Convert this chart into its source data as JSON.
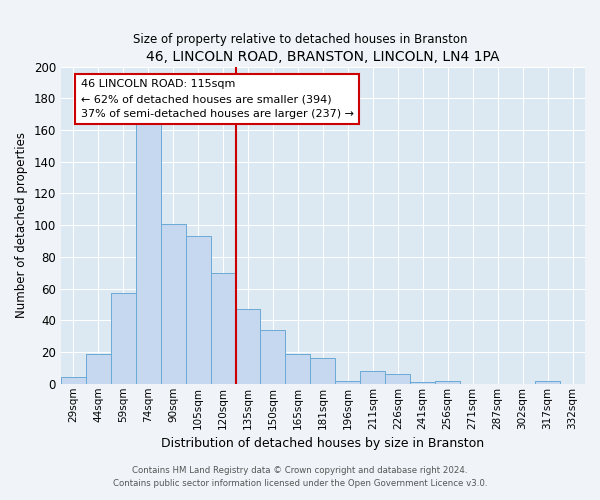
{
  "title": "46, LINCOLN ROAD, BRANSTON, LINCOLN, LN4 1PA",
  "subtitle": "Size of property relative to detached houses in Branston",
  "xlabel": "Distribution of detached houses by size in Branston",
  "ylabel": "Number of detached properties",
  "bar_labels": [
    "29sqm",
    "44sqm",
    "59sqm",
    "74sqm",
    "90sqm",
    "105sqm",
    "120sqm",
    "135sqm",
    "150sqm",
    "165sqm",
    "181sqm",
    "196sqm",
    "211sqm",
    "226sqm",
    "241sqm",
    "256sqm",
    "271sqm",
    "287sqm",
    "302sqm",
    "317sqm",
    "332sqm"
  ],
  "bar_values": [
    4,
    19,
    57,
    165,
    101,
    93,
    70,
    47,
    34,
    19,
    16,
    2,
    8,
    6,
    1,
    2,
    0,
    0,
    0,
    2,
    0
  ],
  "bar_color": "#c5d8ef",
  "bar_edge_color": "#6aaad4",
  "vline_color": "#cc0000",
  "annotation_title": "46 LINCOLN ROAD: 115sqm",
  "annotation_line1": "← 62% of detached houses are smaller (394)",
  "annotation_line2": "37% of semi-detached houses are larger (237) →",
  "annotation_box_color": "#ffffff",
  "annotation_box_edge": "#cc0000",
  "ylim": [
    0,
    200
  ],
  "yticks": [
    0,
    20,
    40,
    60,
    80,
    100,
    120,
    140,
    160,
    180,
    200
  ],
  "footer1": "Contains HM Land Registry data © Crown copyright and database right 2024.",
  "footer2": "Contains public sector information licensed under the Open Government Licence v3.0.",
  "fig_bg_color": "#f0f4f8",
  "plot_bg_color": "#dce8f2"
}
